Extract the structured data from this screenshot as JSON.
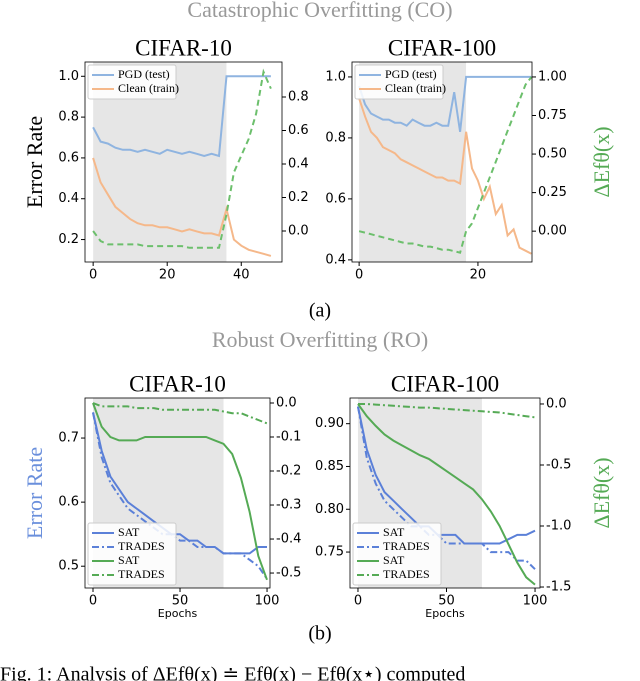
{
  "heading_co": "Catastrophic Overfitting (CO)",
  "label_a": "(a)",
  "heading_ro": "Robust Overfitting (RO)",
  "label_b": "(b)",
  "caption": "Fig. 1: Analysis of ΔEfθ(x) ≐ Efθ(x) − Efθ(x⋆) computed",
  "chart_data": [
    {
      "type": "line",
      "title": "CIFAR-10",
      "ylabel": "Error Rate",
      "ylabel_color": "#000000",
      "x": [
        0,
        2,
        4,
        6,
        8,
        10,
        12,
        14,
        16,
        18,
        20,
        22,
        24,
        26,
        28,
        30,
        32,
        34,
        36,
        38,
        40,
        42,
        44,
        46,
        48
      ],
      "xlim": [
        -2.2,
        51
      ],
      "xticks": [
        0,
        20,
        40
      ],
      "ylim": [
        0.09,
        1.07
      ],
      "yticks": [
        0.2,
        0.4,
        0.6,
        0.8,
        {
          "value": 1,
          "label": "1.0"
        }
      ],
      "y2lim": [
        -0.185,
        1.009
      ],
      "y2ticks": [
        {
          "value": 0,
          "label": "0.0"
        },
        0.2,
        0.4,
        0.6,
        0.8
      ],
      "shaded_region": [
        0,
        36
      ],
      "legend": "upper left",
      "series": [
        {
          "name": "PGD (test)",
          "color": "#8fb4e0",
          "style": "solid",
          "values": [
            0.75,
            0.68,
            0.67,
            0.65,
            0.64,
            0.64,
            0.63,
            0.64,
            0.63,
            0.62,
            0.64,
            0.63,
            0.62,
            0.63,
            0.62,
            0.61,
            0.62,
            0.61,
            1.0,
            1.0,
            1.0,
            1.0,
            1.0,
            1.0,
            1.0
          ]
        },
        {
          "name": "Clean (train)",
          "color": "#f5b88a",
          "style": "solid",
          "values": [
            0.6,
            0.48,
            0.42,
            0.36,
            0.33,
            0.3,
            0.28,
            0.27,
            0.27,
            0.26,
            0.26,
            0.25,
            0.24,
            0.25,
            0.24,
            0.23,
            0.23,
            0.22,
            0.35,
            0.2,
            0.17,
            0.15,
            0.14,
            0.13,
            0.12
          ]
        },
        {
          "color": "#6cbf6c",
          "style": "dashed",
          "axis": "y2",
          "values": [
            0.0,
            -0.06,
            -0.08,
            -0.08,
            -0.08,
            -0.08,
            -0.08,
            -0.09,
            -0.09,
            -0.09,
            -0.09,
            -0.09,
            -0.09,
            -0.1,
            -0.1,
            -0.1,
            -0.1,
            -0.1,
            0.1,
            0.35,
            0.45,
            0.55,
            0.7,
            0.95,
            0.85
          ]
        }
      ]
    },
    {
      "type": "line",
      "title": "CIFAR-100",
      "y2label": "ΔEfθ(x)",
      "x": [
        0,
        1,
        2,
        3,
        4,
        5,
        6,
        7,
        8,
        9,
        10,
        11,
        12,
        13,
        14,
        15,
        16,
        17,
        18,
        19,
        20,
        21,
        22,
        23,
        24,
        25,
        26,
        27,
        28,
        29
      ],
      "xlim": [
        -1.2,
        29.1
      ],
      "xticks": [
        0,
        20
      ],
      "ylim": [
        0.393,
        1.049
      ],
      "yticks": [
        0.4,
        0.6,
        0.8,
        {
          "value": 1,
          "label": "1.0"
        }
      ],
      "y2lim": [
        -0.2,
        1.097
      ],
      "y2ticks": [
        {
          "value": 0,
          "label": "0.00"
        },
        {
          "value": 0.25,
          "label": "0.25"
        },
        {
          "value": 0.5,
          "label": "0.50"
        },
        {
          "value": 0.75,
          "label": "0.75"
        },
        {
          "value": 1,
          "label": "1.00"
        }
      ],
      "shaded_region": [
        0,
        18
      ],
      "legend": "upper left",
      "series": [
        {
          "name": "PGD (test)",
          "color": "#8fb4e0",
          "style": "solid",
          "values": [
            0.97,
            0.91,
            0.88,
            0.87,
            0.86,
            0.86,
            0.85,
            0.85,
            0.84,
            0.86,
            0.85,
            0.84,
            0.84,
            0.85,
            0.84,
            0.84,
            0.95,
            0.82,
            1.0,
            1.0,
            1.0,
            1.0,
            1.0,
            1.0,
            1.0,
            1.0,
            1.0,
            1.0,
            1.0,
            1.0
          ]
        },
        {
          "name": "Clean (train)",
          "color": "#f5b88a",
          "style": "solid",
          "values": [
            0.93,
            0.87,
            0.82,
            0.8,
            0.77,
            0.76,
            0.75,
            0.73,
            0.72,
            0.71,
            0.7,
            0.69,
            0.68,
            0.67,
            0.67,
            0.66,
            0.66,
            0.65,
            0.82,
            0.7,
            0.66,
            0.6,
            0.64,
            0.55,
            0.58,
            0.48,
            0.5,
            0.44,
            0.43,
            0.42
          ]
        },
        {
          "color": "#6cbf6c",
          "style": "dashed",
          "axis": "y2",
          "values": [
            0.0,
            -0.01,
            -0.02,
            -0.03,
            -0.04,
            -0.05,
            -0.06,
            -0.07,
            -0.08,
            -0.08,
            -0.09,
            -0.1,
            -0.1,
            -0.11,
            -0.12,
            -0.12,
            -0.13,
            -0.14,
            0.0,
            0.05,
            0.15,
            0.25,
            0.35,
            0.45,
            0.55,
            0.65,
            0.75,
            0.85,
            0.95,
            1.0
          ]
        }
      ]
    },
    {
      "type": "line",
      "title": "CIFAR-10",
      "ylabel": "Error Rate",
      "ylabel_color": "#6a8fdc",
      "xlabel": "Epochs",
      "x": [
        0,
        5,
        10,
        15,
        20,
        25,
        30,
        35,
        40,
        45,
        50,
        55,
        60,
        65,
        70,
        75,
        80,
        85,
        90,
        95,
        100
      ],
      "xlim": [
        -4.6,
        101.7
      ],
      "xticks": [
        0,
        50,
        100
      ],
      "ylim": [
        0.466,
        0.7625
      ],
      "yticks": [
        0.5,
        0.6,
        0.7
      ],
      "y2lim": [
        -0.544,
        0.0147
      ],
      "y2ticks": [
        {
          "value": 0,
          "label": "0.0"
        },
        -0.1,
        -0.2,
        -0.3,
        -0.4,
        -0.5
      ],
      "shaded_region": [
        0,
        75
      ],
      "legend": "lower left",
      "series": [
        {
          "name": "SAT",
          "color": "#5b80d8",
          "style": "solid",
          "values": [
            0.74,
            0.68,
            0.64,
            0.62,
            0.6,
            0.59,
            0.58,
            0.57,
            0.56,
            0.55,
            0.55,
            0.54,
            0.54,
            0.53,
            0.53,
            0.52,
            0.52,
            0.52,
            0.52,
            0.53,
            0.53
          ]
        },
        {
          "name": "TRADES",
          "color": "#5b80d8",
          "style": "dashdot",
          "values": [
            0.74,
            0.67,
            0.63,
            0.61,
            0.59,
            0.58,
            0.57,
            0.56,
            0.55,
            0.55,
            0.54,
            0.54,
            0.53,
            0.53,
            0.53,
            0.52,
            0.52,
            0.52,
            0.51,
            0.5,
            0.48
          ]
        },
        {
          "name": "SAT",
          "color": "#55aa55",
          "style": "solid",
          "axis": "y2",
          "values": [
            0,
            -0.07,
            -0.1,
            -0.11,
            -0.11,
            -0.11,
            -0.1,
            -0.1,
            -0.1,
            -0.1,
            -0.1,
            -0.1,
            -0.1,
            -0.1,
            -0.11,
            -0.12,
            -0.15,
            -0.22,
            -0.32,
            -0.45,
            -0.52
          ]
        },
        {
          "name": "TRADES",
          "color": "#55aa55",
          "style": "dashdot",
          "axis": "y2",
          "values": [
            0,
            -0.01,
            -0.01,
            -0.01,
            -0.01,
            -0.015,
            -0.015,
            -0.015,
            -0.02,
            -0.02,
            -0.02,
            -0.02,
            -0.02,
            -0.02,
            -0.02,
            -0.025,
            -0.03,
            -0.03,
            -0.04,
            -0.05,
            -0.06
          ]
        }
      ]
    },
    {
      "type": "line",
      "title": "CIFAR-100",
      "y2label": "ΔEfθ(x)",
      "xlabel": "Epochs",
      "x": [
        0,
        5,
        10,
        15,
        20,
        25,
        30,
        35,
        40,
        45,
        50,
        55,
        60,
        65,
        70,
        75,
        80,
        85,
        90,
        95,
        100
      ],
      "xlim": [
        -4.5,
        102.8
      ],
      "xticks": [
        0,
        50,
        100
      ],
      "ylim": [
        0.708,
        0.93
      ],
      "yticks": [
        {
          "value": 0.75,
          "label": "0.75"
        },
        {
          "value": 0.8,
          "label": "0.80"
        },
        {
          "value": 0.85,
          "label": "0.85"
        },
        {
          "value": 0.9,
          "label": "0.90"
        }
      ],
      "y2lim": [
        -1.508,
        0.049
      ],
      "y2ticks": [
        {
          "value": 0,
          "label": "0.0"
        },
        -0.5,
        {
          "value": -1,
          "label": "-1.0"
        },
        -1.5
      ],
      "shaded_region": [
        0,
        70
      ],
      "legend": "lower left",
      "series": [
        {
          "name": "SAT",
          "color": "#5b80d8",
          "style": "solid",
          "values": [
            0.92,
            0.87,
            0.84,
            0.82,
            0.81,
            0.8,
            0.79,
            0.78,
            0.78,
            0.77,
            0.77,
            0.77,
            0.76,
            0.76,
            0.76,
            0.76,
            0.76,
            0.765,
            0.77,
            0.77,
            0.775
          ]
        },
        {
          "name": "TRADES",
          "color": "#5b80d8",
          "style": "dashdot",
          "values": [
            0.92,
            0.86,
            0.83,
            0.81,
            0.8,
            0.79,
            0.78,
            0.78,
            0.77,
            0.77,
            0.76,
            0.76,
            0.76,
            0.76,
            0.76,
            0.75,
            0.75,
            0.75,
            0.74,
            0.74,
            0.73
          ]
        },
        {
          "name": "SAT",
          "color": "#55aa55",
          "style": "solid",
          "axis": "y2",
          "values": [
            0,
            -0.1,
            -0.18,
            -0.25,
            -0.3,
            -0.34,
            -0.38,
            -0.42,
            -0.45,
            -0.5,
            -0.55,
            -0.6,
            -0.65,
            -0.7,
            -0.78,
            -0.88,
            -1.0,
            -1.15,
            -1.3,
            -1.42,
            -1.48
          ]
        },
        {
          "name": "TRADES",
          "color": "#55aa55",
          "style": "dashdot",
          "axis": "y2",
          "values": [
            0,
            0,
            -0.005,
            -0.01,
            -0.015,
            -0.02,
            -0.025,
            -0.03,
            -0.03,
            -0.035,
            -0.04,
            -0.045,
            -0.05,
            -0.055,
            -0.06,
            -0.065,
            -0.07,
            -0.08,
            -0.09,
            -0.1,
            -0.11
          ]
        }
      ]
    }
  ]
}
